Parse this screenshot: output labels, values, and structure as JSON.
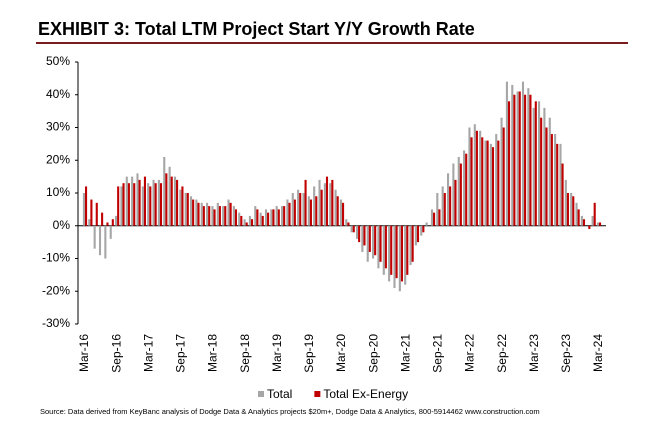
{
  "chart_data": {
    "type": "bar",
    "title": "EXHIBIT 3: Total LTM Project Start Y/Y Growth Rate",
    "source": "Source: Data derived from KeyBanc analysis of Dodge Data & Analytics projects $20m+, Dodge Data & Analytics, 800-5914462 www.construction.com",
    "categories": [
      "Mar-16",
      null,
      null,
      null,
      null,
      null,
      "Sep-16",
      null,
      null,
      null,
      null,
      null,
      "Mar-17",
      null,
      null,
      null,
      null,
      null,
      "Sep-17",
      null,
      null,
      null,
      null,
      null,
      "Mar-18",
      null,
      null,
      null,
      null,
      null,
      "Sep-18",
      null,
      null,
      null,
      null,
      null,
      "Mar-19",
      null,
      null,
      null,
      null,
      null,
      "Sep-19",
      null,
      null,
      null,
      null,
      null,
      "Mar-20",
      null,
      null,
      null,
      null,
      null,
      "Sep-20",
      null,
      null,
      null,
      null,
      null,
      "Mar-21",
      null,
      null,
      null,
      null,
      null,
      "Sep-21",
      null,
      null,
      null,
      null,
      null,
      "Mar-22",
      null,
      null,
      null,
      null,
      null,
      "Sep-22",
      null,
      null,
      null,
      null,
      null,
      "Mar-23",
      null,
      null,
      null,
      null,
      null,
      "Sep-23",
      null,
      null,
      null,
      null,
      null,
      "Mar-24"
    ],
    "series": [
      {
        "name": "Total",
        "color": "#a6a6a6",
        "values": [
          10,
          2,
          -7,
          -9,
          -10,
          -4,
          3,
          12,
          15,
          15,
          16,
          12,
          13,
          14,
          14,
          21,
          18,
          15,
          11,
          10,
          9,
          8,
          7,
          7,
          6,
          7,
          6,
          8,
          6,
          4,
          2,
          3,
          6,
          4,
          5,
          5,
          6,
          6,
          8,
          10,
          11,
          10,
          9,
          12,
          14,
          13,
          13,
          11,
          8,
          2,
          -2,
          -4,
          -8,
          -11,
          -10,
          -13,
          -15,
          -17,
          -19,
          -20,
          -18,
          -12,
          -6,
          -3,
          1,
          5,
          10,
          12,
          16,
          19,
          21,
          23,
          30,
          31,
          29,
          26,
          25,
          28,
          33,
          44,
          43,
          41,
          44,
          42,
          36,
          38,
          36,
          33,
          28,
          25,
          14,
          10,
          7,
          3,
          0,
          3,
          1
        ]
      },
      {
        "name": "Total Ex-Energy",
        "color": "#c00000",
        "values": [
          12,
          8,
          7,
          4,
          1,
          2,
          12,
          13,
          13,
          13,
          14,
          15,
          12,
          13,
          13,
          16,
          15,
          14,
          12,
          10,
          8,
          7,
          6,
          6,
          5,
          6,
          6,
          7,
          5,
          3,
          1,
          2,
          5,
          3,
          4,
          5,
          5,
          6,
          7,
          8,
          10,
          14,
          8,
          9,
          11,
          15,
          14,
          9,
          7,
          1,
          -2,
          -5,
          -6,
          -8,
          -9,
          -11,
          -13,
          -15,
          -16,
          -17,
          -15,
          -11,
          -5,
          -2,
          0,
          4,
          5,
          10,
          12,
          14,
          19,
          22,
          27,
          29,
          27,
          26,
          24,
          26,
          30,
          38,
          40,
          41,
          40,
          40,
          38,
          33,
          30,
          28,
          25,
          19,
          10,
          9,
          5,
          2,
          -1,
          7,
          1
        ]
      }
    ],
    "ylim": [
      -30,
      50
    ],
    "yticks": [
      {
        "value": -30,
        "label": "-30%"
      },
      {
        "value": -20,
        "label": "-20%"
      },
      {
        "value": -10,
        "label": "-10%"
      },
      {
        "value": 0,
        "label": "0%"
      },
      {
        "value": 10,
        "label": "10%"
      },
      {
        "value": 20,
        "label": "20%"
      },
      {
        "value": 30,
        "label": "30%"
      },
      {
        "value": 40,
        "label": "40%"
      },
      {
        "value": 50,
        "label": "50%"
      }
    ],
    "legend": "bottom"
  }
}
